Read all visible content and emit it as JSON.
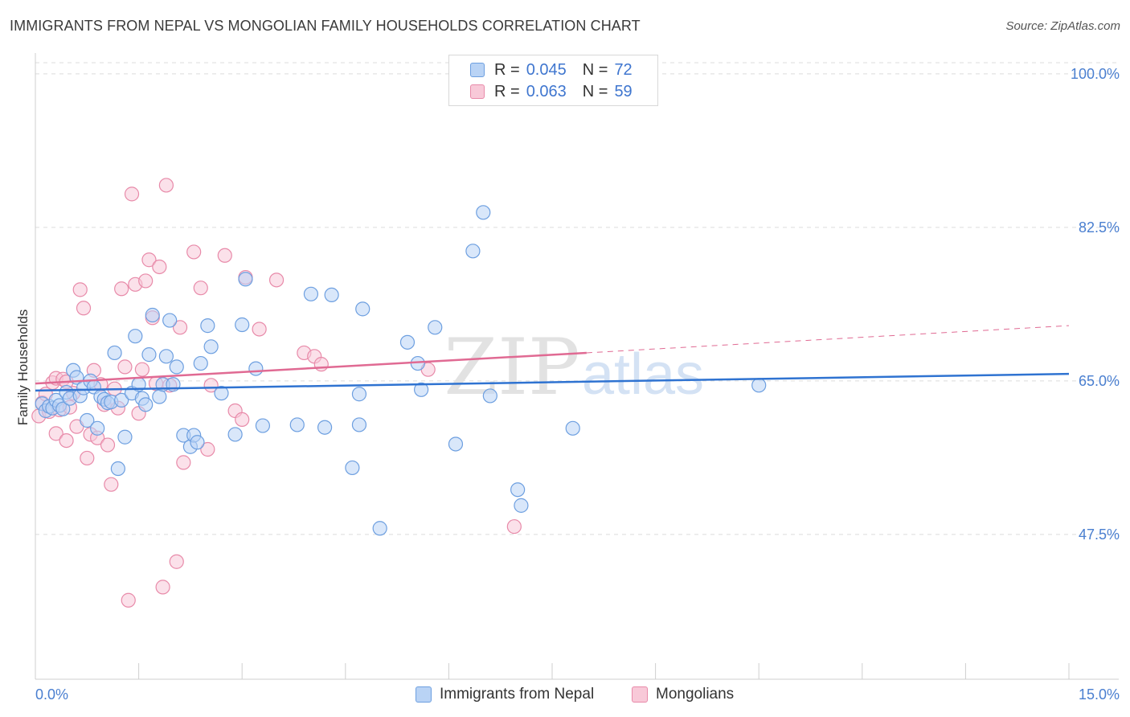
{
  "header": {
    "title": "IMMIGRANTS FROM NEPAL VS MONGOLIAN FAMILY HOUSEHOLDS CORRELATION CHART",
    "source": "Source: ZipAtlas.com"
  },
  "legend": {
    "rows": [
      {
        "r_label": "R =",
        "r_value": "0.045",
        "n_label": "N =",
        "n_value": "72"
      },
      {
        "r_label": "R =",
        "r_value": "0.063",
        "n_label": "N =",
        "n_value": "59"
      }
    ]
  },
  "watermark": {
    "zip": "ZIP",
    "atlas": "atlas"
  },
  "colors": {
    "nepal_fill": "#b9d3f5",
    "nepal_stroke": "#6d9fe0",
    "nepal_line": "#2f73d1",
    "mongol_fill": "#f8c9d8",
    "mongol_stroke": "#e88aa9",
    "mongol_line": "#e06a93",
    "tick_text": "#4a7fd0",
    "grid": "#dcdcdc"
  },
  "chart_data": {
    "type": "scatter",
    "title": "IMMIGRANTS FROM NEPAL VS MONGOLIAN FAMILY HOUSEHOLDS CORRELATION CHART",
    "xlabel": "",
    "ylabel": "Family Households",
    "xlim": [
      0,
      15
    ],
    "ylim": [
      31,
      102
    ],
    "x_tick_labels": [
      "0.0%",
      "15.0%"
    ],
    "y_ticks": [
      47.5,
      65.0,
      82.5,
      100.0
    ],
    "y_tick_labels": [
      "47.5%",
      "65.0%",
      "82.5%",
      "100.0%"
    ],
    "grid": true,
    "legend_position": "bottom",
    "series": [
      {
        "name": "Immigrants from Nepal",
        "r": 0.045,
        "n": 72,
        "trend": {
          "x": [
            0,
            15
          ],
          "y": [
            63.9,
            65.8
          ]
        },
        "points": [
          [
            0.1,
            62.4
          ],
          [
            0.15,
            61.6
          ],
          [
            0.2,
            62.1
          ],
          [
            0.25,
            61.9
          ],
          [
            0.3,
            62.8
          ],
          [
            0.35,
            62.2
          ],
          [
            0.4,
            61.8
          ],
          [
            0.45,
            63.7
          ],
          [
            0.5,
            63.0
          ],
          [
            0.55,
            66.2
          ],
          [
            0.6,
            65.4
          ],
          [
            0.65,
            63.3
          ],
          [
            0.7,
            64.2
          ],
          [
            0.75,
            60.5
          ],
          [
            0.8,
            65.0
          ],
          [
            0.85,
            64.3
          ],
          [
            0.9,
            59.6
          ],
          [
            0.95,
            63.2
          ],
          [
            1.0,
            62.9
          ],
          [
            1.05,
            62.5
          ],
          [
            1.1,
            62.6
          ],
          [
            1.15,
            68.2
          ],
          [
            1.2,
            55.0
          ],
          [
            1.25,
            62.8
          ],
          [
            1.3,
            58.6
          ],
          [
            1.4,
            63.6
          ],
          [
            1.45,
            70.1
          ],
          [
            1.5,
            64.6
          ],
          [
            1.55,
            63.0
          ],
          [
            1.6,
            62.3
          ],
          [
            1.65,
            68.0
          ],
          [
            1.7,
            72.5
          ],
          [
            1.8,
            63.2
          ],
          [
            1.85,
            64.6
          ],
          [
            1.9,
            67.8
          ],
          [
            1.95,
            71.9
          ],
          [
            2.0,
            64.6
          ],
          [
            2.05,
            66.6
          ],
          [
            2.15,
            58.8
          ],
          [
            2.25,
            57.5
          ],
          [
            2.3,
            58.8
          ],
          [
            2.35,
            58.0
          ],
          [
            2.4,
            67.0
          ],
          [
            2.5,
            71.3
          ],
          [
            2.55,
            68.9
          ],
          [
            2.7,
            63.6
          ],
          [
            2.9,
            58.9
          ],
          [
            3.0,
            71.4
          ],
          [
            3.05,
            76.6
          ],
          [
            3.2,
            66.4
          ],
          [
            3.3,
            59.9
          ],
          [
            3.8,
            60.0
          ],
          [
            4.0,
            74.9
          ],
          [
            4.2,
            59.7
          ],
          [
            4.3,
            74.8
          ],
          [
            4.6,
            55.1
          ],
          [
            4.7,
            60.0
          ],
          [
            4.7,
            63.5
          ],
          [
            4.75,
            73.2
          ],
          [
            5.0,
            48.2
          ],
          [
            5.4,
            69.4
          ],
          [
            5.55,
            67.0
          ],
          [
            5.6,
            64.0
          ],
          [
            5.8,
            71.1
          ],
          [
            6.1,
            57.8
          ],
          [
            6.35,
            79.8
          ],
          [
            6.5,
            84.2
          ],
          [
            6.6,
            63.3
          ],
          [
            7.0,
            52.6
          ],
          [
            7.05,
            50.8
          ],
          [
            7.8,
            59.6
          ],
          [
            10.5,
            64.5
          ]
        ]
      },
      {
        "name": "Mongolians",
        "r": 0.063,
        "n": 59,
        "trend": {
          "x": [
            0,
            8
          ],
          "y": [
            64.7,
            68.2
          ]
        },
        "trend_extension": {
          "x": [
            8,
            15
          ],
          "y": [
            68.2,
            71.3
          ]
        },
        "points": [
          [
            0.05,
            61.0
          ],
          [
            0.1,
            62.5
          ],
          [
            0.15,
            63.5
          ],
          [
            0.2,
            61.5
          ],
          [
            0.25,
            64.8
          ],
          [
            0.3,
            65.3
          ],
          [
            0.35,
            61.7
          ],
          [
            0.4,
            65.2
          ],
          [
            0.45,
            64.9
          ],
          [
            0.5,
            62.0
          ],
          [
            0.55,
            63.6
          ],
          [
            0.6,
            59.8
          ],
          [
            0.65,
            75.4
          ],
          [
            0.7,
            73.3
          ],
          [
            0.75,
            56.2
          ],
          [
            0.8,
            58.9
          ],
          [
            0.85,
            66.2
          ],
          [
            0.9,
            58.5
          ],
          [
            0.95,
            64.6
          ],
          [
            1.0,
            62.3
          ],
          [
            1.05,
            57.7
          ],
          [
            1.1,
            53.2
          ],
          [
            1.15,
            64.1
          ],
          [
            1.2,
            61.9
          ],
          [
            1.25,
            75.5
          ],
          [
            1.3,
            66.6
          ],
          [
            1.35,
            40.0
          ],
          [
            1.4,
            86.3
          ],
          [
            1.45,
            76.0
          ],
          [
            1.5,
            61.3
          ],
          [
            1.55,
            66.3
          ],
          [
            1.6,
            76.4
          ],
          [
            1.65,
            78.8
          ],
          [
            1.7,
            72.2
          ],
          [
            1.75,
            64.7
          ],
          [
            1.8,
            78.0
          ],
          [
            1.85,
            41.5
          ],
          [
            1.9,
            87.3
          ],
          [
            1.95,
            64.5
          ],
          [
            2.05,
            44.4
          ],
          [
            2.1,
            71.1
          ],
          [
            2.15,
            55.7
          ],
          [
            2.3,
            79.7
          ],
          [
            2.4,
            75.6
          ],
          [
            2.5,
            57.2
          ],
          [
            2.55,
            64.5
          ],
          [
            2.75,
            79.3
          ],
          [
            2.9,
            61.6
          ],
          [
            3.0,
            60.6
          ],
          [
            3.05,
            76.8
          ],
          [
            3.25,
            70.9
          ],
          [
            3.5,
            76.5
          ],
          [
            3.9,
            68.2
          ],
          [
            4.05,
            67.8
          ],
          [
            4.15,
            66.9
          ],
          [
            5.7,
            66.3
          ],
          [
            6.95,
            48.4
          ],
          [
            0.3,
            59.0
          ],
          [
            0.45,
            58.2
          ]
        ]
      }
    ]
  },
  "bottom_legend": {
    "items": [
      "Immigrants from Nepal",
      "Mongolians"
    ]
  }
}
